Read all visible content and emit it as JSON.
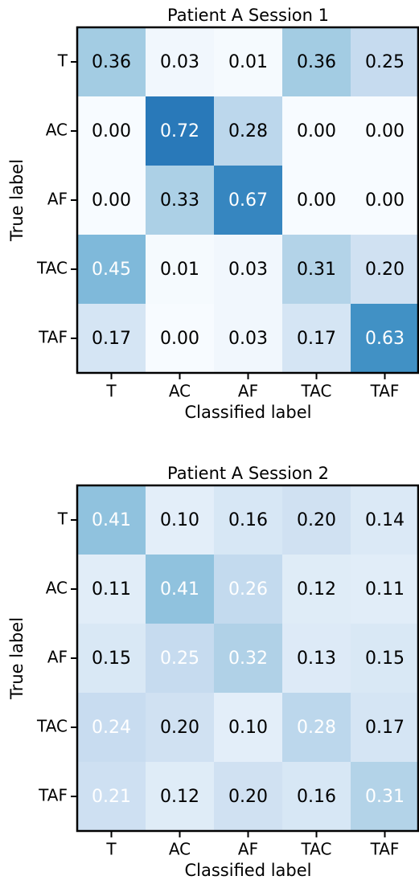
{
  "chart_data": [
    {
      "type": "heatmap",
      "title": "Patient A Session 1",
      "x_label": "Classified label",
      "y_label": "True label",
      "x_categories": [
        "T",
        "AC",
        "AF",
        "TAC",
        "TAF"
      ],
      "y_categories": [
        "T",
        "AC",
        "AF",
        "TAC",
        "TAF"
      ],
      "values": [
        [
          0.36,
          0.03,
          0.01,
          0.36,
          0.25
        ],
        [
          0.0,
          0.72,
          0.28,
          0.0,
          0.0
        ],
        [
          0.0,
          0.33,
          0.67,
          0.0,
          0.0
        ],
        [
          0.45,
          0.01,
          0.03,
          0.31,
          0.2
        ],
        [
          0.17,
          0.0,
          0.03,
          0.17,
          0.63
        ]
      ],
      "value_labels": [
        [
          "0.36",
          "0.03",
          "0.01",
          "0.36",
          "0.25"
        ],
        [
          "0.00",
          "0.72",
          "0.28",
          "0.00",
          "0.00"
        ],
        [
          "0.00",
          "0.33",
          "0.67",
          "0.00",
          "0.00"
        ],
        [
          "0.45",
          "0.01",
          "0.03",
          "0.31",
          "0.20"
        ],
        [
          "0.17",
          "0.00",
          "0.03",
          "0.17",
          "0.63"
        ]
      ],
      "colormap": "Blues"
    },
    {
      "type": "heatmap",
      "title": "Patient A Session 2",
      "x_label": "Classified label",
      "y_label": "True label",
      "x_categories": [
        "T",
        "AC",
        "AF",
        "TAC",
        "TAF"
      ],
      "y_categories": [
        "T",
        "AC",
        "AF",
        "TAC",
        "TAF"
      ],
      "values": [
        [
          0.41,
          0.1,
          0.16,
          0.2,
          0.14
        ],
        [
          0.11,
          0.41,
          0.26,
          0.12,
          0.11
        ],
        [
          0.15,
          0.25,
          0.32,
          0.13,
          0.15
        ],
        [
          0.24,
          0.2,
          0.1,
          0.28,
          0.17
        ],
        [
          0.21,
          0.12,
          0.2,
          0.16,
          0.31
        ]
      ],
      "value_labels": [
        [
          "0.41",
          "0.10",
          "0.16",
          "0.20",
          "0.14"
        ],
        [
          "0.11",
          "0.41",
          "0.26",
          "0.12",
          "0.11"
        ],
        [
          "0.15",
          "0.25",
          "0.32",
          "0.13",
          "0.15"
        ],
        [
          "0.24",
          "0.20",
          "0.10",
          "0.28",
          "0.17"
        ],
        [
          "0.21",
          "0.12",
          "0.20",
          "0.16",
          "0.31"
        ]
      ],
      "colormap": "Blues"
    }
  ]
}
